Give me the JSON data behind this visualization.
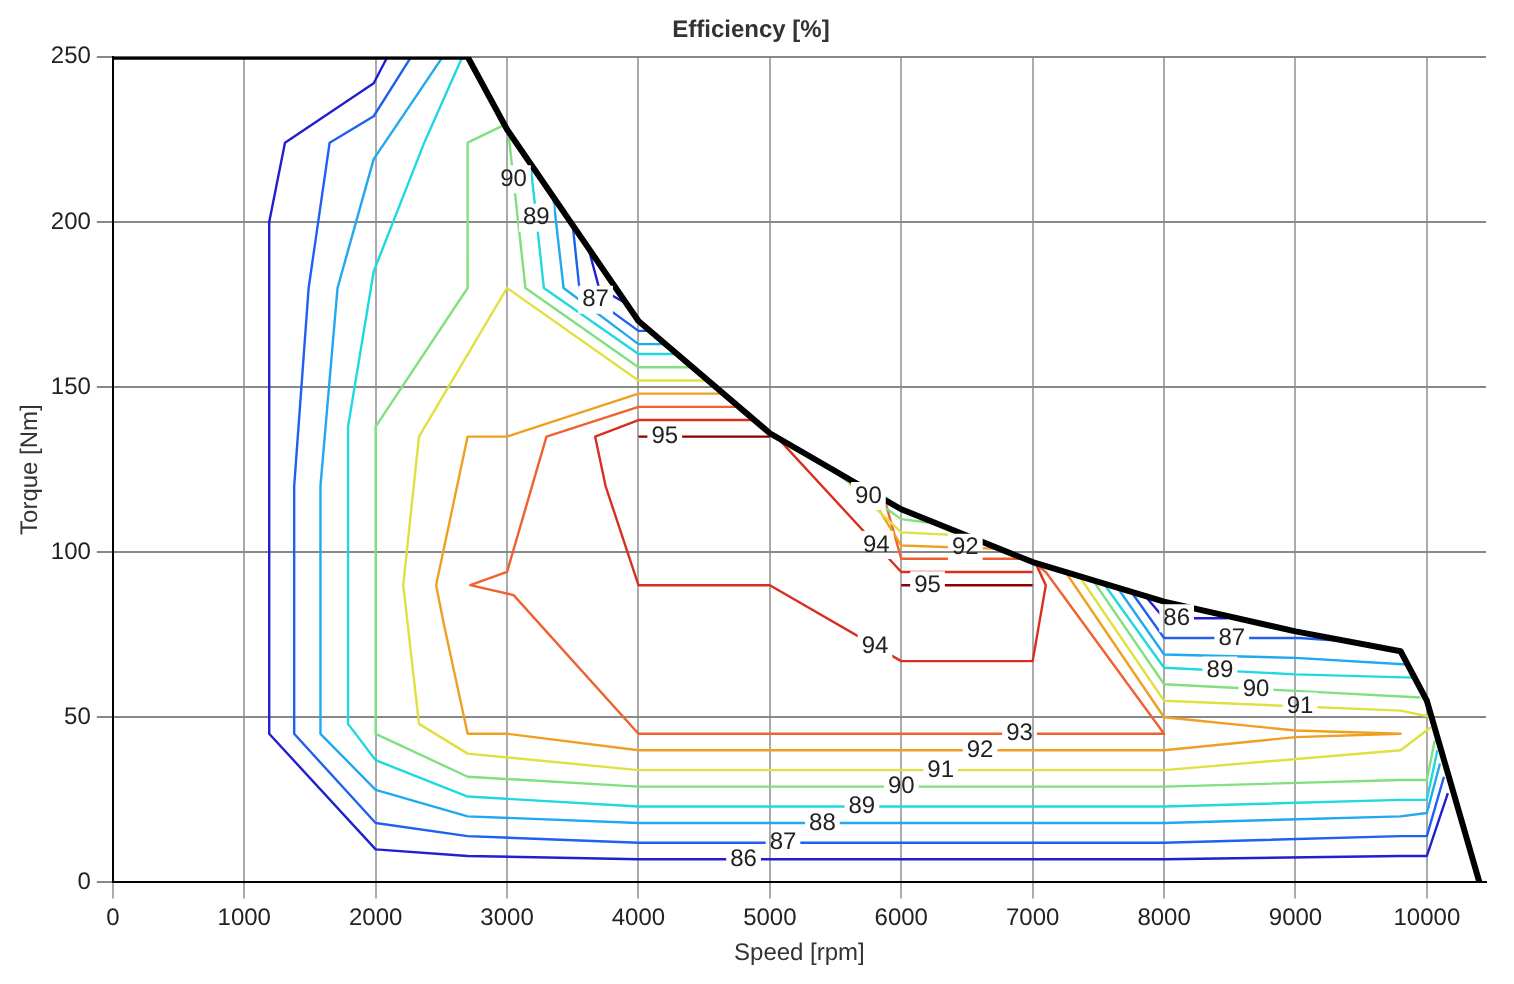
{
  "chart_data": {
    "type": "line",
    "title": "Efficiency [%]",
    "xlabel": "Speed [rpm]",
    "ylabel": "Torque [Nm]",
    "xlim": [
      0,
      10450
    ],
    "xticks": [
      0,
      1000,
      2000,
      3000,
      4000,
      5000,
      6000,
      7000,
      8000,
      9000,
      10000
    ],
    "ylim": [
      0,
      250
    ],
    "yticks": [
      0,
      50,
      100,
      150,
      200,
      250
    ],
    "grid": true,
    "legend": false,
    "marker": "none",
    "line_style": "solid",
    "series": [
      {
        "name": "86",
        "color": "#2020d0",
        "x": [
          2090,
          1985,
          1310,
          1190,
          1190,
          2000,
          2700,
          4000,
          8000,
          9800,
          10000,
          10160,
          null,
          3620,
          3700,
          3920,
          null,
          7850,
          8000,
          8480
        ],
        "values": [
          250,
          242,
          224,
          200,
          45,
          10,
          8,
          7,
          7,
          8,
          8,
          27,
          null,
          192,
          180,
          175,
          null,
          87,
          80,
          80
        ]
      },
      {
        "name": "87",
        "color": "#2060f0",
        "x": [
          2270,
          1985,
          1650,
          1490,
          1380,
          1380,
          2000,
          2700,
          4000,
          8000,
          9800,
          10000,
          10130,
          null,
          3500,
          3550,
          4000,
          4080,
          null,
          7750,
          8000,
          9030,
          9400
        ],
        "values": [
          250,
          232,
          224,
          180,
          120,
          45,
          18,
          14,
          12,
          12,
          14,
          14,
          32,
          null,
          199,
          180,
          167,
          167,
          null,
          88,
          74,
          74,
          73
        ]
      },
      {
        "name": "88",
        "color": "#20a8f0",
        "x": [
          2510,
          1985,
          1710,
          1580,
          1580,
          2000,
          2700,
          4000,
          8000,
          9800,
          10000,
          10100,
          null,
          3350,
          3430,
          4000,
          4200,
          null,
          7650,
          8000,
          9000,
          9850
        ],
        "values": [
          250,
          219,
          180,
          120,
          45,
          28,
          20,
          18,
          18,
          20,
          21,
          36,
          null,
          208,
          180,
          163,
          163,
          null,
          89,
          69,
          68,
          66
        ]
      },
      {
        "name": "89",
        "color": "#20d8e0",
        "x": [
          2660,
          2370,
          1985,
          1790,
          1790,
          2000,
          2700,
          4000,
          8000,
          9800,
          10000,
          10080,
          null,
          3180,
          3280,
          4000,
          4300,
          null,
          7550,
          8000,
          9000,
          9900
        ],
        "values": [
          250,
          224,
          185,
          138,
          48,
          37,
          26,
          23,
          23,
          25,
          25,
          40,
          null,
          217,
          180,
          160,
          160,
          null,
          90,
          65,
          63,
          62
        ]
      },
      {
        "name": "90",
        "color": "#80e080",
        "x": [
          2960,
          2700,
          2700,
          2000,
          2000,
          2700,
          4000,
          8000,
          9800,
          10000,
          10060,
          null,
          3010,
          3140,
          4000,
          4420,
          null,
          5500,
          6000,
          6200,
          null,
          7450,
          8000,
          9000,
          9950
        ],
        "values": [
          229,
          224,
          180,
          138,
          45,
          32,
          29,
          29,
          31,
          31,
          43,
          null,
          227,
          180,
          156,
          156,
          null,
          124,
          110,
          109,
          null,
          92,
          60,
          58,
          56
        ]
      },
      {
        "name": "91",
        "color": "#e0e040",
        "x": [
          4530,
          4000,
          3000,
          2330,
          2210,
          2330,
          2700,
          4000,
          8000,
          9800,
          10030,
          null,
          5600,
          6000,
          6500,
          null,
          7350,
          8000,
          9800,
          10040
        ],
        "values": [
          152,
          152,
          180,
          135,
          90,
          48,
          39,
          34,
          34,
          40,
          47,
          null,
          121,
          106,
          105,
          null,
          93,
          55,
          52,
          50
        ]
      },
      {
        "name": "92",
        "color": "#f0a020",
        "x": [
          4640,
          4000,
          3000,
          2700,
          2460,
          2520,
          2700,
          3000,
          4000,
          8000,
          9000,
          9800,
          9000,
          8000,
          7250,
          null,
          5750,
          6000,
          6750
        ],
        "values": [
          148,
          148,
          135,
          135,
          90,
          78,
          45,
          45,
          40,
          40,
          44,
          45,
          46,
          50,
          94,
          null,
          118,
          102,
          101
        ]
      },
      {
        "name": "93",
        "color": "#f06030",
        "x": [
          4770,
          4000,
          3300,
          3000,
          2720,
          3050,
          4000,
          8000,
          7100,
          7000,
          null,
          5880,
          6000,
          6900
        ],
        "values": [
          144,
          144,
          135,
          94,
          90,
          87,
          45,
          45,
          94,
          97,
          null,
          115,
          98,
          98
        ]
      },
      {
        "name": "94",
        "color": "#d83020",
        "x": [
          4900,
          4000,
          3670,
          3750,
          4000,
          5000,
          6000,
          7000,
          7100,
          7030,
          null,
          5050,
          6000,
          7000
        ],
        "values": [
          140,
          140,
          135,
          120,
          90,
          90,
          67,
          67,
          90,
          96,
          null,
          135,
          94,
          94
        ]
      },
      {
        "name": "95",
        "color": "#900000",
        "x": [
          4000,
          5000,
          null,
          6000,
          7000
        ],
        "values": [
          135,
          135,
          null,
          90,
          90
        ]
      },
      {
        "color": "#000000",
        "x": [
          0,
          2700,
          3000,
          4000,
          5000,
          6000,
          7000,
          8000,
          9000,
          9800,
          10000,
          10400
        ],
        "values": [
          250,
          250,
          228,
          170,
          136,
          113,
          97,
          85,
          76,
          70,
          55,
          0
        ]
      }
    ]
  }
}
